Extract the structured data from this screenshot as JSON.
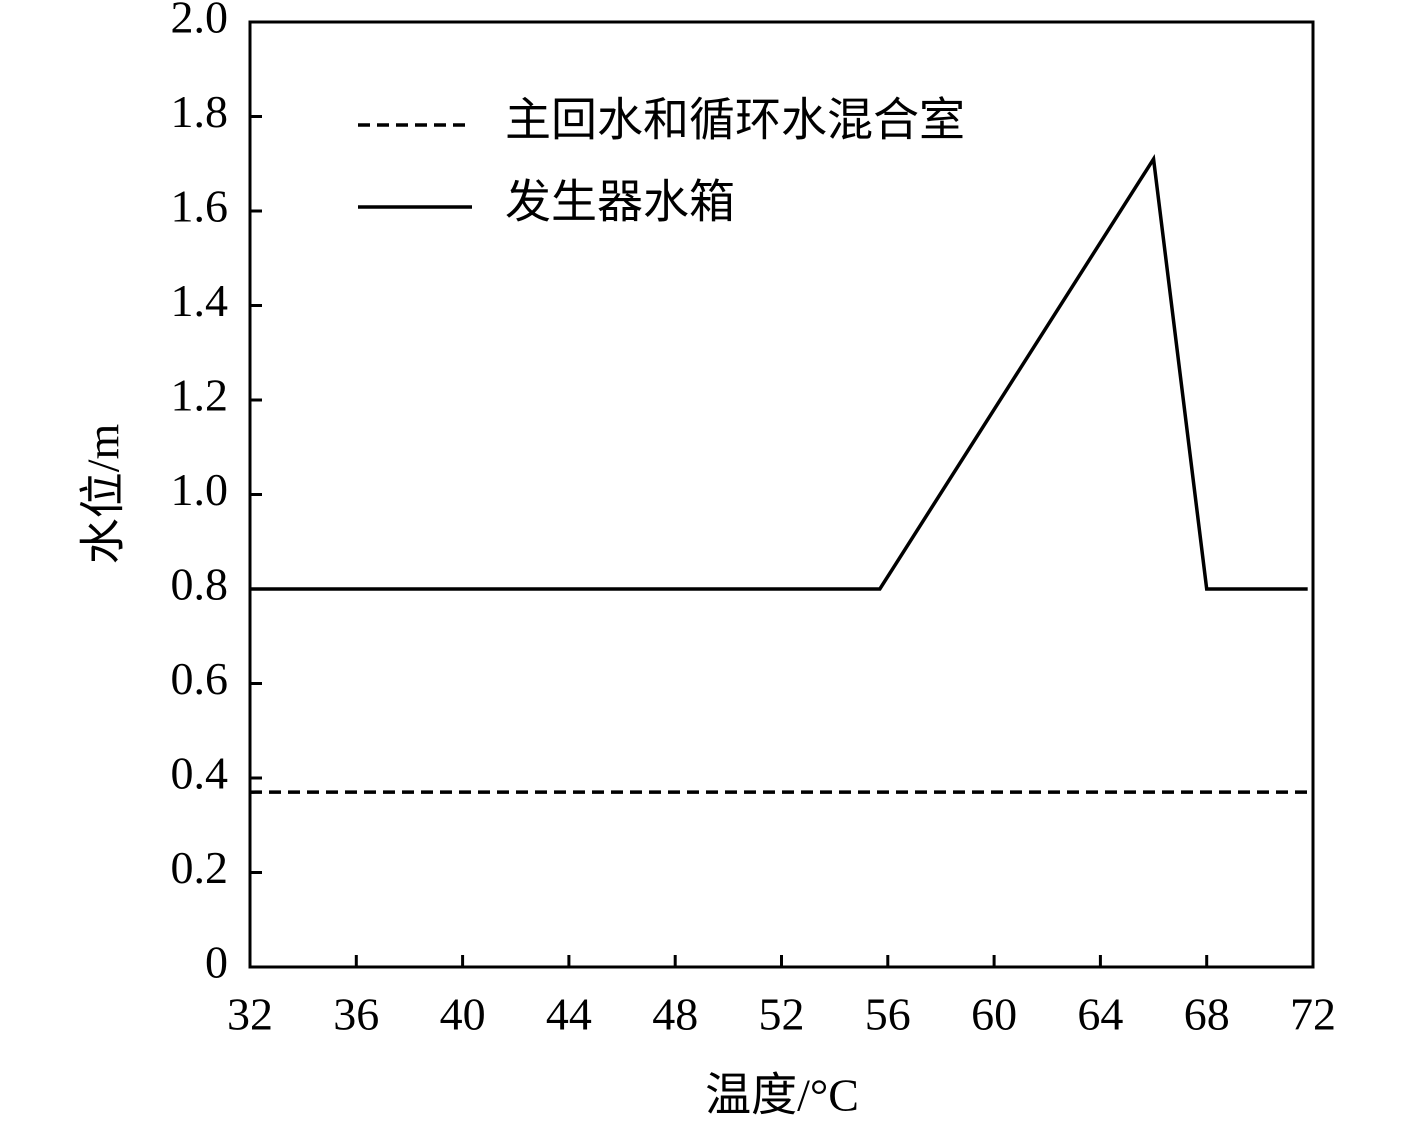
{
  "chart_data": {
    "type": "line",
    "xlabel": "温度/°C",
    "ylabel": "水位/m",
    "xlim": [
      32,
      72
    ],
    "xticks": [
      32,
      36,
      40,
      44,
      48,
      52,
      56,
      60,
      64,
      68,
      72
    ],
    "ylim": [
      0,
      2
    ],
    "yticks": [
      0,
      0.2,
      0.4,
      0.6,
      0.8,
      {
        "value": 1,
        "label": "1.0"
      },
      1.2,
      1.4,
      1.6,
      1.8,
      {
        "value": 2,
        "label": "2.0"
      }
    ],
    "legend": "upper left",
    "grid": false,
    "series": [
      {
        "name": "主回水和循环水混合室",
        "color": "#000000",
        "linestyle": "dashed",
        "x": [
          32,
          72
        ],
        "values": [
          0.37,
          0.37
        ]
      },
      {
        "name": "发生器水箱",
        "color": "#000000",
        "linestyle": "solid",
        "x": [
          32,
          55.7,
          66,
          68,
          71.8
        ],
        "values": [
          0.8,
          0.8,
          1.71,
          0.8,
          0.8
        ]
      }
    ]
  }
}
